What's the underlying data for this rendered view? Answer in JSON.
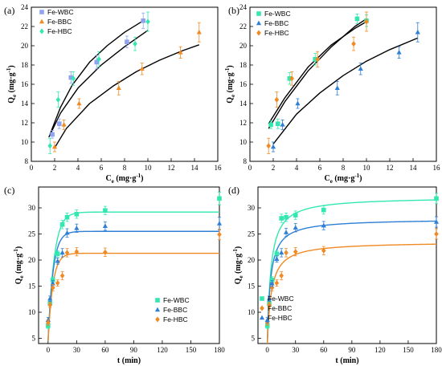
{
  "colors": {
    "Fe-WBC": "#33e8b0",
    "Fe-BBC": "#f08a24",
    "Fe-HBC": "#2f7fd6",
    "Fe-WBC-a": "#8fa3f0",
    "line": "#000000"
  },
  "chart_data": [
    {
      "id": "a",
      "panel_label": "(a)",
      "type": "scatter",
      "xlabel": "C",
      "xlabel_sub": "e",
      "xlabel_unit": " (mg·g",
      "xlabel_sup": "-1",
      "xlabel_end": ")",
      "ylabel": "Q",
      "ylabel_sub": "e",
      "ylabel_unit": " (mg·g",
      "ylabel_sup": "-1",
      "ylabel_end": ")",
      "xlim": [
        0,
        16
      ],
      "ylim": [
        8,
        24
      ],
      "xticks": [
        0,
        2,
        4,
        6,
        8,
        10,
        12,
        14,
        16
      ],
      "yticks": [
        8,
        10,
        12,
        14,
        16,
        18,
        20,
        22,
        24
      ],
      "legend_position": "top-left",
      "series": [
        {
          "name": "Fe-WBC",
          "marker": "square",
          "color_key": "Fe-WBC-a",
          "x": [
            1.8,
            2.4,
            3.4,
            5.6,
            8.2,
            9.6
          ],
          "y": [
            10.8,
            11.9,
            16.7,
            18.3,
            20.4,
            22.6
          ],
          "err": [
            0.4,
            0.5,
            0.6,
            0.7,
            0.6,
            0.8
          ]
        },
        {
          "name": "Fe-BBC",
          "marker": "triangle",
          "color_key": "Fe-BBC",
          "x": [
            2.0,
            2.8,
            4.1,
            7.5,
            9.5,
            12.8,
            14.4
          ],
          "y": [
            9.5,
            11.8,
            14.0,
            15.6,
            17.6,
            19.3,
            21.4
          ],
          "err": [
            0.5,
            0.5,
            0.5,
            0.7,
            0.6,
            0.6,
            1.0
          ]
        },
        {
          "name": "Fe-HBC",
          "marker": "diamond",
          "color_key": "Fe-WBC",
          "x": [
            1.6,
            2.3,
            3.6,
            5.8,
            8.9,
            10.0
          ],
          "y": [
            9.6,
            14.4,
            16.6,
            18.6,
            20.2,
            22.5
          ],
          "err": [
            0.8,
            0.8,
            0.7,
            0.8,
            0.7,
            1.0
          ]
        }
      ],
      "fits": [
        {
          "color_key": "line",
          "x": [
            1.6,
            2.5,
            3.5,
            5,
            6.5,
            8,
            9.6
          ],
          "y": [
            10.8,
            13.6,
            15.9,
            18.3,
            20.0,
            21.4,
            22.6
          ]
        },
        {
          "color_key": "line",
          "x": [
            1.5,
            2.5,
            4,
            6,
            8,
            10
          ],
          "y": [
            10.5,
            13.0,
            15.6,
            18.0,
            19.9,
            21.6
          ]
        },
        {
          "color_key": "line",
          "x": [
            2.0,
            3,
            5,
            7,
            9,
            11,
            13,
            14.4
          ],
          "y": [
            9.4,
            11.4,
            14.0,
            15.8,
            17.3,
            18.5,
            19.5,
            20.1
          ]
        }
      ]
    },
    {
      "id": "b",
      "panel_label": "(b)",
      "type": "scatter",
      "xlabel": "C",
      "xlabel_sub": "e",
      "xlabel_unit": " (mg·g",
      "xlabel_sup": "-1",
      "xlabel_end": ")",
      "ylabel": "Q",
      "ylabel_sub": "e",
      "ylabel_unit": " (mg·g",
      "ylabel_sup": "-1",
      "ylabel_end": ")",
      "xlim": [
        0,
        16
      ],
      "ylim": [
        8,
        24
      ],
      "xticks": [
        0,
        2,
        4,
        6,
        8,
        10,
        12,
        14,
        16
      ],
      "yticks": [
        8,
        10,
        12,
        14,
        16,
        18,
        20,
        22,
        24
      ],
      "legend_position": "top-left",
      "series": [
        {
          "name": "Fe-WBC",
          "marker": "square",
          "color_key": "Fe-WBC",
          "x": [
            1.8,
            2.4,
            3.4,
            5.6,
            9.2,
            10.0
          ],
          "y": [
            11.8,
            11.9,
            16.6,
            18.6,
            22.8,
            22.6
          ],
          "err": [
            0.4,
            0.5,
            0.6,
            0.6,
            0.5,
            0.6
          ]
        },
        {
          "name": "Fe-BBC",
          "marker": "triangle",
          "color_key": "Fe-HBC",
          "x": [
            2.0,
            2.8,
            4.1,
            7.5,
            9.5,
            12.8,
            14.4
          ],
          "y": [
            9.5,
            11.8,
            14.0,
            15.6,
            17.6,
            19.3,
            21.4
          ],
          "err": [
            0.5,
            0.5,
            0.5,
            0.7,
            0.6,
            0.6,
            1.0
          ]
        },
        {
          "name": "Fe-HBC",
          "marker": "diamond",
          "color_key": "Fe-BBC",
          "x": [
            1.6,
            2.3,
            3.6,
            5.8,
            8.9,
            10.0
          ],
          "y": [
            9.6,
            14.4,
            16.6,
            18.6,
            20.2,
            22.5
          ],
          "err": [
            0.8,
            0.8,
            0.7,
            0.8,
            0.7,
            1.0
          ]
        }
      ],
      "fits": [
        {
          "color_key": "line",
          "x": [
            1.6,
            3,
            5,
            7,
            9,
            10
          ],
          "y": [
            11.4,
            14.2,
            17.4,
            19.9,
            22.0,
            22.8
          ]
        },
        {
          "color_key": "line",
          "x": [
            1.6,
            3,
            5,
            7,
            9,
            10
          ],
          "y": [
            11.9,
            14.6,
            17.8,
            20.1,
            21.8,
            22.5
          ]
        },
        {
          "color_key": "line",
          "x": [
            2.0,
            4,
            6,
            8,
            10,
            12,
            14.4
          ],
          "y": [
            9.8,
            12.9,
            15.1,
            16.9,
            18.4,
            19.6,
            20.8
          ]
        }
      ]
    },
    {
      "id": "c",
      "panel_label": "(c)",
      "type": "scatter",
      "xlabel": "t (min)",
      "ylabel": "Q",
      "ylabel_sub": "e",
      "ylabel_unit": " (mg·g",
      "ylabel_sup": "-1",
      "ylabel_end": ")",
      "xlim": [
        -10,
        180
      ],
      "ylim": [
        4,
        34
      ],
      "xticks": [
        0,
        30,
        60,
        90,
        120,
        150,
        180
      ],
      "yticks": [
        5,
        10,
        15,
        20,
        25,
        30
      ],
      "legend_position": "bottom-right",
      "series": [
        {
          "name": "Fe-WBC",
          "marker": "square",
          "color_key": "Fe-WBC",
          "x": [
            0,
            2,
            5,
            10,
            15,
            20,
            30,
            60,
            180
          ],
          "y": [
            7.4,
            11.7,
            16.2,
            21.2,
            26.8,
            28.2,
            28.8,
            29.5,
            31.8
          ],
          "err": [
            0.5,
            0.5,
            0.6,
            0.6,
            0.8,
            0.8,
            0.8,
            0.8,
            1.2
          ]
        },
        {
          "name": "Fe-BBC",
          "marker": "triangle",
          "color_key": "Fe-HBC",
          "x": [
            0,
            2,
            5,
            10,
            15,
            20,
            30,
            60,
            180
          ],
          "y": [
            8.5,
            12.6,
            15.5,
            19.8,
            21.4,
            25.2,
            26.1,
            26.5,
            27.0
          ],
          "err": [
            0.5,
            0.5,
            0.6,
            0.6,
            0.8,
            0.8,
            0.8,
            0.8,
            1.2
          ]
        },
        {
          "name": "Fe-HBC",
          "marker": "diamond",
          "color_key": "Fe-BBC",
          "x": [
            0,
            2,
            5,
            10,
            15,
            20,
            30,
            60,
            180
          ],
          "y": [
            8.0,
            11.4,
            14.7,
            15.6,
            17.0,
            21.4,
            21.6,
            21.5,
            24.9
          ],
          "err": [
            0.5,
            0.5,
            0.6,
            0.6,
            0.8,
            0.8,
            0.8,
            0.8,
            1.0
          ]
        }
      ],
      "fits": [
        {
          "color_key": "Fe-WBC",
          "model": "pfo",
          "qe": 29.2,
          "k": 0.16,
          "q0": 4.5
        },
        {
          "color_key": "Fe-HBC",
          "model": "pfo",
          "qe": 25.5,
          "k": 0.19,
          "q0": 4.5
        },
        {
          "color_key": "Fe-BBC",
          "model": "pfo",
          "qe": 21.3,
          "k": 0.2,
          "q0": 4.5
        }
      ]
    },
    {
      "id": "d",
      "panel_label": "(d)",
      "type": "scatter",
      "xlabel": "t (min)",
      "ylabel": "Q",
      "ylabel_sub": "e",
      "ylabel_unit": " (mg·g",
      "ylabel_sup": "-1",
      "ylabel_end": ")",
      "xlim": [
        -10,
        180
      ],
      "ylim": [
        4,
        34
      ],
      "xticks": [
        0,
        30,
        60,
        90,
        120,
        150,
        180
      ],
      "yticks": [
        5,
        10,
        15,
        20,
        25,
        30
      ],
      "legend_position": "bottom-left",
      "series": [
        {
          "name": "Fe-WBC",
          "marker": "square",
          "color_key": "Fe-WBC",
          "x": [
            0,
            2,
            5,
            10,
            15,
            20,
            30,
            60,
            180
          ],
          "y": [
            7.4,
            11.7,
            16.2,
            21.2,
            28.0,
            28.2,
            28.6,
            29.6,
            31.8
          ],
          "err": [
            0.5,
            0.5,
            0.6,
            0.6,
            0.8,
            0.8,
            0.8,
            0.8,
            1.0
          ]
        },
        {
          "name": "Fe-BBC",
          "marker": "diamond",
          "color_key": "Fe-BBC",
          "x": [
            0,
            2,
            5,
            10,
            15,
            20,
            30,
            60,
            180
          ],
          "y": [
            8.0,
            11.4,
            14.7,
            15.6,
            17.0,
            21.4,
            21.6,
            21.8,
            25.0
          ],
          "err": [
            0.5,
            0.5,
            0.6,
            0.6,
            0.8,
            0.8,
            0.8,
            0.8,
            1.0
          ]
        },
        {
          "name": "Fe-HBC",
          "marker": "triangle",
          "color_key": "Fe-HBC",
          "x": [
            0,
            2,
            5,
            10,
            15,
            20,
            30,
            60,
            180
          ],
          "y": [
            8.5,
            12.6,
            15.5,
            20.2,
            21.4,
            25.3,
            26.2,
            26.6,
            27.3
          ],
          "err": [
            0.5,
            0.5,
            0.6,
            0.6,
            0.8,
            0.8,
            0.8,
            0.8,
            1.0
          ]
        }
      ],
      "fits": [
        {
          "color_key": "Fe-WBC",
          "model": "pso",
          "qe": 32.1,
          "k": 0.0095,
          "q0": 4.0
        },
        {
          "color_key": "Fe-HBC",
          "model": "pso",
          "qe": 27.9,
          "k": 0.0125,
          "q0": 4.0
        },
        {
          "color_key": "Fe-BBC",
          "model": "pso",
          "qe": 23.5,
          "k": 0.012,
          "q0": 4.0
        }
      ]
    }
  ]
}
